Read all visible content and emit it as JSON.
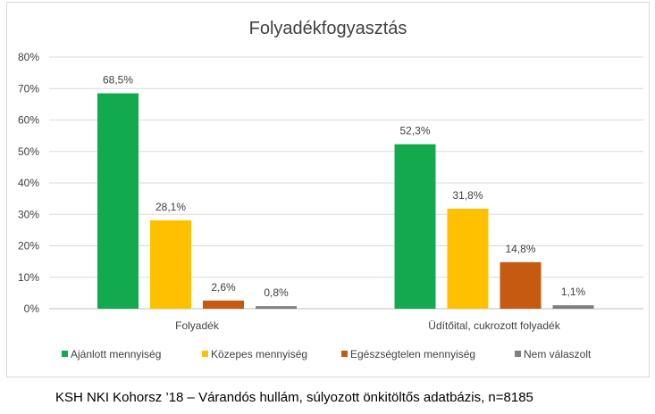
{
  "chart_data": {
    "type": "bar",
    "title": "Folyadékfogyasztás",
    "categories": [
      "Folyadék",
      "Üdítőital, cukrozott folyadék"
    ],
    "series": [
      {
        "name": "Ajánlott mennyiség",
        "values": [
          68.5,
          52.3
        ],
        "labels": [
          "68,5%",
          "52,3%"
        ],
        "color": "#13a94f"
      },
      {
        "name": "Közepes mennyiség",
        "values": [
          28.1,
          31.8
        ],
        "labels": [
          "28,1%",
          "31,8%"
        ],
        "color": "#ffc000"
      },
      {
        "name": "Egészségtelen mennyiség",
        "values": [
          2.6,
          14.8
        ],
        "labels": [
          "2,6%",
          "14,8%"
        ],
        "color": "#c55a11"
      },
      {
        "name": "Nem válaszolt",
        "values": [
          0.8,
          1.1
        ],
        "labels": [
          "0,8%",
          "1,1%"
        ],
        "color": "#7f7f7f"
      }
    ],
    "ylim": [
      0,
      80
    ],
    "yticks": [
      0,
      10,
      20,
      30,
      40,
      50,
      60,
      70,
      80
    ],
    "ytick_labels": [
      "0%",
      "10%",
      "20%",
      "30%",
      "40%",
      "50%",
      "60%",
      "70%",
      "80%"
    ],
    "grid": true,
    "legend_position": "bottom"
  },
  "caption": "KSH NKI Kohorsz ’18 – Várandós hullám, súlyozott önkitöltős adatbázis, n=8185"
}
